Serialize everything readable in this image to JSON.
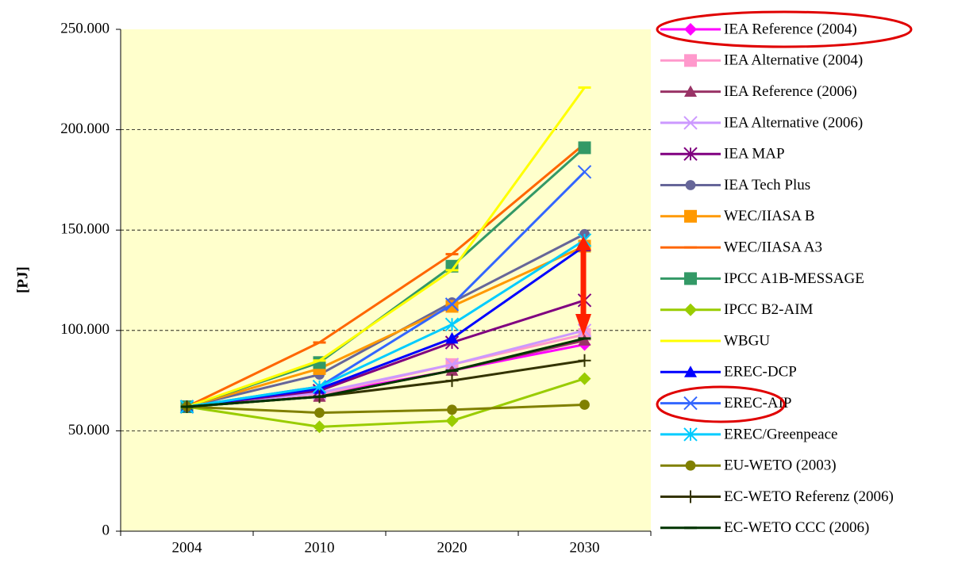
{
  "chart_data": {
    "type": "line",
    "y_label": "[PJ]",
    "categories": [
      "2004",
      "2010",
      "2020",
      "2030"
    ],
    "ylim": [
      0,
      250000
    ],
    "yticks": [
      {
        "value": 0,
        "label": "0"
      },
      {
        "value": 50000,
        "label": "50.000"
      },
      {
        "value": 100000,
        "label": "100.000"
      },
      {
        "value": 150000,
        "label": "150.000"
      },
      {
        "value": 200000,
        "label": "200.000"
      },
      {
        "value": 250000,
        "label": "250.000"
      }
    ],
    "grid": true,
    "legend": "right",
    "series": [
      {
        "name": "IEA Reference (2004)",
        "color": "#ff00ff",
        "marker": "diamond",
        "values": [
          62000,
          68000,
          80000,
          93000
        ]
      },
      {
        "name": "IEA Alternative (2004)",
        "color": "#ff99cc",
        "marker": "square",
        "values": [
          62000,
          68000,
          83000,
          98000
        ]
      },
      {
        "name": "IEA Reference (2006)",
        "color": "#993366",
        "marker": "triangle",
        "values": [
          62000,
          67000,
          80000,
          95000
        ]
      },
      {
        "name": "IEA Alternative (2006)",
        "color": "#cc99ff",
        "marker": "x",
        "values": [
          62000,
          69000,
          83000,
          100000
        ]
      },
      {
        "name": "IEA MAP",
        "color": "#800080",
        "marker": "star",
        "values": [
          62000,
          70000,
          94000,
          115000
        ]
      },
      {
        "name": "IEA Tech Plus",
        "color": "#666699",
        "marker": "circle",
        "values": [
          62000,
          78000,
          114000,
          148000
        ]
      },
      {
        "name": "WEC/IIASA B",
        "color": "#ff9900",
        "marker": "square",
        "values": [
          62000,
          81000,
          112000,
          142000
        ]
      },
      {
        "name": "WEC/IIASA A3",
        "color": "#ff6600",
        "marker": "dash",
        "values": [
          62000,
          94000,
          138000,
          193000
        ]
      },
      {
        "name": "IPCC A1B-MESSAGE",
        "color": "#339966",
        "marker": "square",
        "values": [
          62000,
          84000,
          132000,
          191000
        ]
      },
      {
        "name": "IPCC B2-AIM",
        "color": "#99cc00",
        "marker": "diamond",
        "values": [
          62000,
          52000,
          55000,
          76000
        ]
      },
      {
        "name": "WBGU",
        "color": "#ffff00",
        "marker": "dash",
        "values": [
          62000,
          85000,
          130000,
          221000
        ]
      },
      {
        "name": "EREC-DCP",
        "color": "#0000ff",
        "marker": "triangle",
        "values": [
          62000,
          71000,
          96000,
          142000
        ]
      },
      {
        "name": "EREC-AIP",
        "color": "#3366ff",
        "marker": "x",
        "values": [
          62000,
          72000,
          113000,
          179000
        ]
      },
      {
        "name": "EREC/Greenpeace",
        "color": "#00ccff",
        "marker": "star",
        "values": [
          62000,
          72000,
          103000,
          145000
        ]
      },
      {
        "name": "EU-WETO (2003)",
        "color": "#808000",
        "marker": "circle",
        "values": [
          62000,
          59000,
          60500,
          63000
        ]
      },
      {
        "name": "EC-WETO Referenz (2006)",
        "color": "#333300",
        "marker": "plus",
        "values": [
          62000,
          67000,
          75000,
          85000
        ]
      },
      {
        "name": "EC-WETO CCC (2006)",
        "color": "#003300",
        "marker": "dash",
        "values": [
          62000,
          67000,
          80000,
          96000
        ]
      }
    ]
  }
}
